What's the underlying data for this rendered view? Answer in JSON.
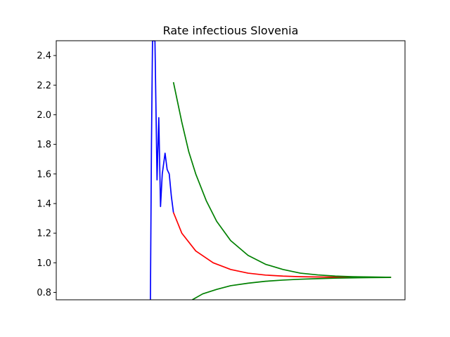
{
  "chart_data": {
    "type": "line",
    "title": "Rate infectious Slovenia",
    "xlabel": "",
    "ylabel": "",
    "ylim": [
      0.75,
      2.5
    ],
    "xlim": [
      0,
      100
    ],
    "y_ticks": [
      "0.8",
      "1.0",
      "1.2",
      "1.4",
      "1.6",
      "1.8",
      "2.0",
      "2.2",
      "2.4"
    ],
    "x_ticks_visible": false,
    "grid": false,
    "legend": "none",
    "series": [
      {
        "color": "#0000ff",
        "points": [
          [
            27.0,
            0.75
          ],
          [
            27.3,
            1.8
          ],
          [
            27.6,
            2.5
          ],
          [
            27.9,
            2.5
          ],
          [
            28.3,
            2.5
          ],
          [
            28.9,
            1.56
          ],
          [
            29.4,
            1.98
          ],
          [
            29.9,
            1.38
          ],
          [
            30.4,
            1.6
          ],
          [
            31.2,
            1.74
          ],
          [
            31.8,
            1.63
          ],
          [
            32.4,
            1.6
          ],
          [
            33.0,
            1.45
          ],
          [
            33.6,
            1.34
          ]
        ]
      },
      {
        "color": "#ff0000",
        "points": [
          [
            33.6,
            1.34
          ],
          [
            36,
            1.2
          ],
          [
            40,
            1.08
          ],
          [
            45,
            1.0
          ],
          [
            50,
            0.955
          ],
          [
            55,
            0.93
          ],
          [
            60,
            0.917
          ],
          [
            65,
            0.91
          ],
          [
            70,
            0.906
          ],
          [
            75,
            0.904
          ],
          [
            80,
            0.903
          ],
          [
            85,
            0.902
          ],
          [
            90,
            0.902
          ],
          [
            96,
            0.902
          ]
        ]
      },
      {
        "color": "#008000",
        "points": [
          [
            33.6,
            2.22
          ],
          [
            36,
            1.95
          ],
          [
            38,
            1.75
          ],
          [
            40,
            1.6
          ],
          [
            43,
            1.42
          ],
          [
            46,
            1.28
          ],
          [
            50,
            1.15
          ],
          [
            55,
            1.05
          ],
          [
            60,
            0.99
          ],
          [
            65,
            0.955
          ],
          [
            70,
            0.93
          ],
          [
            75,
            0.918
          ],
          [
            80,
            0.91
          ],
          [
            85,
            0.906
          ],
          [
            90,
            0.904
          ],
          [
            96,
            0.902
          ]
        ]
      },
      {
        "color": "#008000",
        "points": [
          [
            39,
            0.75
          ],
          [
            42,
            0.79
          ],
          [
            46,
            0.82
          ],
          [
            50,
            0.845
          ],
          [
            55,
            0.862
          ],
          [
            60,
            0.875
          ],
          [
            65,
            0.883
          ],
          [
            70,
            0.889
          ],
          [
            75,
            0.893
          ],
          [
            80,
            0.896
          ],
          [
            85,
            0.898
          ],
          [
            90,
            0.9
          ],
          [
            96,
            0.901
          ]
        ]
      }
    ]
  }
}
